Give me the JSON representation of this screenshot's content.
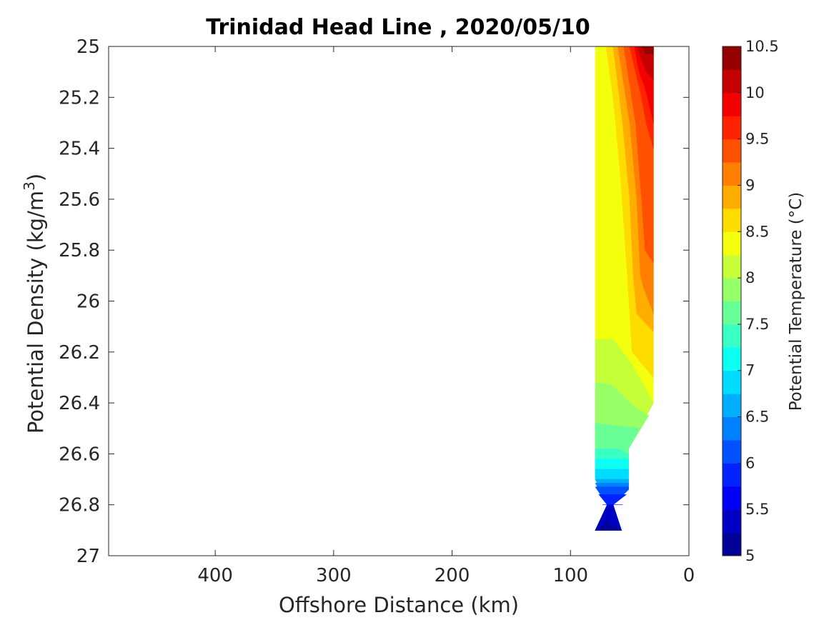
{
  "chart_data": {
    "type": "contour",
    "title": "Trinidad Head Line , 2020/05/10",
    "xlabel": "Offshore Distance (km)",
    "ylabel_prefix": "Potential Density (kg/m",
    "ylabel_sup": "3",
    "ylabel_suffix": ")",
    "xlim": [
      490,
      0
    ],
    "ylim": [
      25,
      27
    ],
    "x_reversed": true,
    "y_reversed": true,
    "xticks": [
      400,
      300,
      200,
      100,
      0
    ],
    "yticks": [
      25,
      25.2,
      25.4,
      25.6,
      25.8,
      26,
      26.2,
      26.4,
      26.6,
      26.8,
      27
    ],
    "xtick_labels": [
      "400",
      "300",
      "200",
      "100",
      "0"
    ],
    "ytick_labels": [
      "25",
      "25.2",
      "25.4",
      "25.6",
      "25.8",
      "26",
      "26.2",
      "26.4",
      "26.6",
      "26.8",
      "27"
    ],
    "colorbar": {
      "label": "Potential Temperature (°C)",
      "range": [
        5,
        10.5
      ],
      "step": 0.25,
      "tick_values": [
        5,
        5.5,
        6,
        6.5,
        7,
        7.5,
        8,
        8.5,
        9,
        9.5,
        10,
        10.5
      ],
      "tick_labels": [
        "5",
        "5.5",
        "6",
        "6.5",
        "7",
        "7.5",
        "8",
        "8.5",
        "9",
        "9.5",
        "10",
        "10.5"
      ],
      "colormap": "jet"
    },
    "region_polygons": [
      {
        "level": 8.375,
        "points": [
          [
            79,
            25
          ],
          [
            30,
            25
          ],
          [
            30,
            26.4
          ],
          [
            51,
            26.58
          ],
          [
            51,
            26.74
          ],
          [
            64,
            26.8
          ],
          [
            57,
            26.9
          ],
          [
            79,
            26.9
          ],
          [
            69,
            26.8
          ],
          [
            79,
            26.7
          ]
        ]
      },
      {
        "level": 8.625,
        "points": [
          [
            70,
            25
          ],
          [
            30,
            25
          ],
          [
            30,
            26.3
          ],
          [
            48,
            26.2
          ],
          [
            52,
            25.9
          ],
          [
            58,
            25.5
          ],
          [
            64,
            25.2
          ]
        ]
      },
      {
        "level": 8.875,
        "points": [
          [
            64,
            25
          ],
          [
            30,
            25
          ],
          [
            30,
            26.12
          ],
          [
            44,
            26.05
          ],
          [
            47,
            25.9
          ],
          [
            50,
            25.6
          ],
          [
            56,
            25.3
          ],
          [
            60,
            25.15
          ]
        ]
      },
      {
        "level": 9.125,
        "points": [
          [
            60,
            25
          ],
          [
            30,
            25
          ],
          [
            30,
            26.05
          ],
          [
            38,
            25.95
          ],
          [
            41,
            25.9
          ],
          [
            44,
            25.6
          ],
          [
            50,
            25.3
          ],
          [
            55,
            25.15
          ]
        ]
      },
      {
        "level": 9.375,
        "points": [
          [
            55,
            25
          ],
          [
            30,
            25
          ],
          [
            30,
            25.85
          ],
          [
            37,
            25.8
          ],
          [
            40,
            25.6
          ],
          [
            45,
            25.3
          ],
          [
            50,
            25.15
          ]
        ]
      },
      {
        "level": 9.625,
        "points": [
          [
            50,
            25
          ],
          [
            30,
            25
          ],
          [
            30,
            25.4
          ],
          [
            36,
            25.3
          ],
          [
            40,
            25.2
          ],
          [
            45,
            25.1
          ]
        ]
      },
      {
        "level": 9.875,
        "points": [
          [
            46,
            25
          ],
          [
            30,
            25
          ],
          [
            30,
            25.3
          ],
          [
            35,
            25.2
          ],
          [
            38,
            25.15
          ],
          [
            42,
            25.1
          ]
        ]
      },
      {
        "level": 10.125,
        "points": [
          [
            44,
            25
          ],
          [
            30,
            25
          ],
          [
            30,
            25.13
          ],
          [
            36,
            25.1
          ],
          [
            40,
            25.05
          ]
        ]
      },
      {
        "level": 10.375,
        "points": [
          [
            40,
            25
          ],
          [
            30,
            25
          ],
          [
            30,
            25.03
          ],
          [
            36,
            25.03
          ]
        ]
      },
      {
        "level": 8.125,
        "points": [
          [
            79,
            26.15
          ],
          [
            64,
            26.15
          ],
          [
            48,
            26.25
          ],
          [
            30,
            26.4
          ],
          [
            51,
            26.58
          ],
          [
            51,
            26.74
          ],
          [
            64,
            26.8
          ],
          [
            57,
            26.9
          ],
          [
            79,
            26.9
          ],
          [
            69,
            26.8
          ],
          [
            79,
            26.7
          ]
        ]
      },
      {
        "level": 7.875,
        "points": [
          [
            79,
            26.32
          ],
          [
            65,
            26.33
          ],
          [
            45,
            26.42
          ],
          [
            34,
            26.45
          ],
          [
            51,
            26.58
          ],
          [
            51,
            26.74
          ],
          [
            64,
            26.8
          ],
          [
            57,
            26.9
          ],
          [
            79,
            26.9
          ],
          [
            69,
            26.8
          ],
          [
            79,
            26.7
          ]
        ]
      },
      {
        "level": 7.625,
        "points": [
          [
            79,
            26.48
          ],
          [
            62,
            26.49
          ],
          [
            42,
            26.5
          ],
          [
            51,
            26.58
          ],
          [
            51,
            26.74
          ],
          [
            64,
            26.8
          ],
          [
            57,
            26.9
          ],
          [
            79,
            26.9
          ],
          [
            69,
            26.8
          ],
          [
            79,
            26.7
          ]
        ]
      },
      {
        "level": 7.375,
        "points": [
          [
            79,
            26.58
          ],
          [
            60,
            26.58
          ],
          [
            51,
            26.6
          ],
          [
            51,
            26.74
          ],
          [
            64,
            26.8
          ],
          [
            57,
            26.9
          ],
          [
            79,
            26.9
          ],
          [
            69,
            26.8
          ],
          [
            79,
            26.7
          ]
        ]
      },
      {
        "level": 7.125,
        "points": [
          [
            79,
            26.62
          ],
          [
            51,
            26.62
          ],
          [
            51,
            26.74
          ],
          [
            64,
            26.8
          ],
          [
            57,
            26.9
          ],
          [
            79,
            26.9
          ],
          [
            69,
            26.8
          ],
          [
            79,
            26.7
          ]
        ]
      },
      {
        "level": 6.875,
        "points": [
          [
            79,
            26.66
          ],
          [
            51,
            26.66
          ],
          [
            51,
            26.74
          ],
          [
            64,
            26.8
          ],
          [
            57,
            26.9
          ],
          [
            79,
            26.9
          ],
          [
            69,
            26.8
          ],
          [
            79,
            26.7
          ]
        ]
      },
      {
        "level": 6.625,
        "points": [
          [
            79,
            26.7
          ],
          [
            51,
            26.7
          ],
          [
            51,
            26.74
          ],
          [
            64,
            26.8
          ],
          [
            57,
            26.9
          ],
          [
            79,
            26.9
          ],
          [
            69,
            26.8
          ],
          [
            79,
            26.7
          ]
        ]
      },
      {
        "level": 6.375,
        "points": [
          [
            79,
            26.715
          ],
          [
            51,
            26.715
          ],
          [
            51,
            26.74
          ],
          [
            64,
            26.8
          ],
          [
            57,
            26.9
          ],
          [
            79,
            26.9
          ],
          [
            69,
            26.8
          ]
        ]
      },
      {
        "level": 6.125,
        "points": [
          [
            79,
            26.73
          ],
          [
            51,
            26.73
          ],
          [
            51,
            26.74
          ],
          [
            64,
            26.8
          ],
          [
            57,
            26.9
          ],
          [
            79,
            26.9
          ],
          [
            69,
            26.8
          ]
        ]
      },
      {
        "level": 5.875,
        "points": [
          [
            76,
            26.76
          ],
          [
            53,
            26.76
          ],
          [
            64,
            26.8
          ],
          [
            57,
            26.9
          ],
          [
            79,
            26.9
          ],
          [
            69,
            26.8
          ]
        ]
      },
      {
        "level": 5.625,
        "points": [
          [
            73,
            26.8
          ],
          [
            56,
            26.8
          ],
          [
            64,
            26.8
          ],
          [
            57,
            26.9
          ],
          [
            79,
            26.9
          ],
          [
            69,
            26.8
          ]
        ]
      },
      {
        "level": 5.375,
        "points": [
          [
            65,
            26.8
          ],
          [
            57,
            26.9
          ],
          [
            79,
            26.9
          ],
          [
            69,
            26.8
          ]
        ]
      },
      {
        "level": 5.125,
        "points": [
          [
            72,
            26.86
          ],
          [
            57,
            26.9
          ],
          [
            79,
            26.9
          ],
          [
            66,
            26.86
          ]
        ]
      }
    ]
  }
}
